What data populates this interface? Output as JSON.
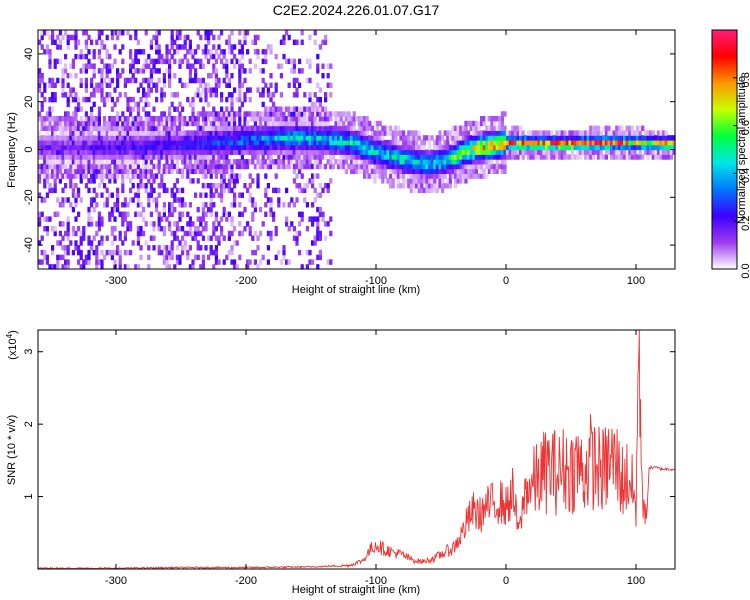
{
  "figure": {
    "title": "C2E2.2024.226.01.07.G17"
  },
  "chart_data": [
    {
      "type": "heatmap",
      "xlabel": "Height of straight line (km)",
      "ylabel": "Frequency (Hz)",
      "xlim": [
        -360,
        130
      ],
      "ylim": [
        -50,
        50
      ],
      "x_ticks": [
        -300,
        -200,
        -100,
        0,
        100
      ],
      "y_ticks": [
        -40,
        -20,
        0,
        20,
        40
      ],
      "x_tick_labels": [
        "-300",
        "-200",
        "-100",
        "0",
        "100"
      ],
      "y_tick_labels": [
        "-40",
        "-20",
        "0",
        "20",
        "40"
      ],
      "colorbar": {
        "label": "Normalized spectral amplitude",
        "range": [
          0,
          1
        ],
        "ticks": [
          0.0,
          0.2,
          0.4,
          0.6,
          0.8
        ],
        "tick_labels": [
          "0.0",
          "0.2",
          "0.4",
          "0.6",
          "0.8"
        ],
        "colors": [
          "#ffffff",
          "#9e3cf0",
          "#3c00ff",
          "#0078ff",
          "#00e6e6",
          "#00ff3c",
          "#c8ff00",
          "#ff9600",
          "#ff0000",
          "#ff1e78"
        ]
      },
      "ridge": {
        "x": [
          -360,
          -300,
          -250,
          -200,
          -170,
          -140,
          -120,
          -100,
          -80,
          -60,
          -50,
          -40,
          -30,
          -20,
          -10,
          0,
          20,
          50,
          80,
          100,
          110,
          130
        ],
        "y": [
          0,
          0,
          1,
          3,
          4,
          3.5,
          2,
          -2,
          -5,
          -7,
          -6,
          -4,
          -1,
          0,
          1,
          2,
          1.5,
          1.5,
          2,
          2,
          1.5,
          1.5
        ],
        "amplitude": [
          0.15,
          0.2,
          0.25,
          0.35,
          0.45,
          0.45,
          0.5,
          0.5,
          0.5,
          0.45,
          0.5,
          0.6,
          0.7,
          0.8,
          0.85,
          0.9,
          0.95,
          0.95,
          0.95,
          0.7,
          0.8,
          0.9
        ]
      },
      "noise_region_x": [
        -360,
        -135
      ]
    },
    {
      "type": "line",
      "xlabel": "Height of straight line (km)",
      "ylabel": "SNR (10 * v/v)",
      "y_multiplier": "(x10",
      "y_multiplier_exp": "4",
      "y_multiplier_close": ")",
      "xlim": [
        -360,
        130
      ],
      "ylim": [
        0,
        3.3
      ],
      "x_ticks": [
        -300,
        -200,
        -100,
        0,
        100
      ],
      "y_ticks": [
        1,
        2,
        3
      ],
      "x_tick_labels": [
        "-300",
        "-200",
        "-100",
        "0",
        "100"
      ],
      "y_tick_labels": [
        "1",
        "2",
        "3"
      ],
      "color": "#ee3333",
      "series": [
        {
          "x": [
            -360,
            -300,
            -250,
            -200,
            -150,
            -120,
            -110,
            -105,
            -100,
            -95,
            -90,
            -85,
            -80,
            -75,
            -70,
            -65,
            -60,
            -55,
            -50,
            -45,
            -40,
            -35,
            -30,
            -25,
            -20,
            -15,
            -10,
            -5,
            0,
            5,
            10,
            15,
            20,
            25,
            30,
            35,
            40,
            45,
            50,
            55,
            60,
            65,
            70,
            75,
            80,
            85,
            90,
            95,
            100,
            102,
            105,
            108,
            110,
            115,
            120,
            125,
            130
          ],
          "y": [
            0.01,
            0.01,
            0.02,
            0.02,
            0.03,
            0.05,
            0.12,
            0.25,
            0.35,
            0.28,
            0.25,
            0.22,
            0.2,
            0.15,
            0.12,
            0.1,
            0.12,
            0.15,
            0.2,
            0.25,
            0.3,
            0.45,
            0.65,
            0.8,
            0.75,
            0.85,
            0.9,
            0.95,
            0.85,
            1.05,
            0.5,
            1.1,
            1.15,
            1.25,
            1.35,
            1.4,
            1.3,
            1.4,
            1.35,
            1.45,
            1.3,
            1.5,
            1.4,
            1.35,
            1.5,
            1.45,
            1.2,
            1.3,
            0.8,
            3.1,
            1.1,
            0.6,
            1.4,
            1.4,
            1.38,
            1.38,
            1.38
          ]
        }
      ]
    }
  ]
}
